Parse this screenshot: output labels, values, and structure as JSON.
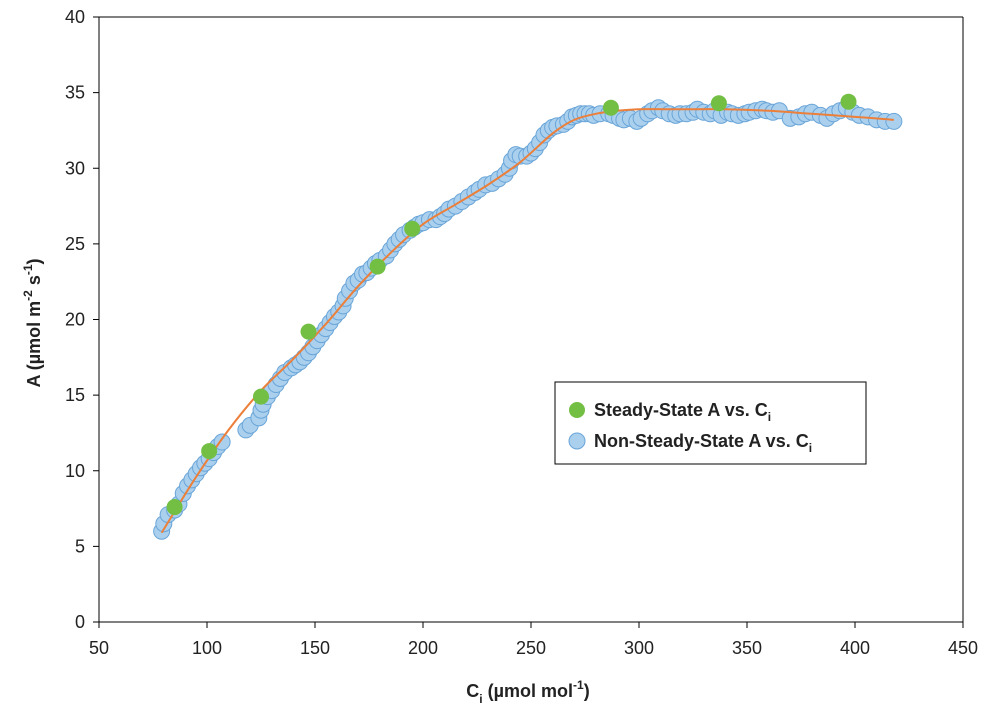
{
  "chart_data": {
    "type": "scatter",
    "xlabel": "C",
    "xlabel_sub": "i",
    "xlabel_unit": " (µmol mol",
    "xlabel_sup": "-1",
    "xlabel_close": ")",
    "ylabel": "A (µmol m",
    "ylabel_sup1": "-2",
    "ylabel_mid": " s",
    "ylabel_sup2": "-1",
    "ylabel_close": ")",
    "xlim": [
      50,
      450
    ],
    "ylim": [
      0,
      40
    ],
    "x_ticks": [
      "50",
      "100",
      "150",
      "200",
      "250",
      "300",
      "350",
      "400",
      "450"
    ],
    "y_ticks": [
      "0",
      "5",
      "10",
      "15",
      "20",
      "25",
      "30",
      "35",
      "40"
    ],
    "grid": false,
    "legend_position": "center-right",
    "series": [
      {
        "name": "Non-Steady-State A vs. C",
        "name_sub": "i",
        "color": "#aad0ee",
        "edge_color": "#6aa5d8",
        "marker": "circle",
        "x": [
          79,
          80,
          82,
          85,
          87,
          89,
          91,
          93,
          95,
          97,
          99,
          101,
          103,
          105,
          107,
          118,
          120,
          124,
          125,
          126,
          128,
          130,
          132,
          134,
          136,
          139,
          141,
          143,
          145,
          147,
          149,
          151,
          153,
          155,
          157,
          159,
          161,
          163,
          164,
          166,
          168,
          170,
          172,
          174,
          176,
          178,
          180,
          183,
          185,
          187,
          189,
          191,
          194,
          196,
          198,
          200,
          203,
          206,
          208,
          210,
          212,
          215,
          218,
          221,
          224,
          226,
          229,
          232,
          235,
          238,
          240,
          241,
          243,
          245,
          248,
          250,
          252,
          254,
          256,
          258,
          260,
          262,
          265,
          267,
          269,
          271,
          273,
          275,
          277,
          279,
          282,
          286,
          288,
          291,
          293,
          296,
          299,
          301,
          304,
          306,
          309,
          311,
          314,
          317,
          319,
          322,
          325,
          327,
          330,
          333,
          335,
          338,
          341,
          343,
          346,
          349,
          351,
          354,
          357,
          359,
          362,
          365,
          370,
          374,
          377,
          380,
          384,
          387,
          390,
          393,
          396,
          399,
          402,
          406,
          410,
          414,
          418
        ],
        "y": [
          6.0,
          6.5,
          7.1,
          7.4,
          7.8,
          8.5,
          9.0,
          9.4,
          9.8,
          10.2,
          10.5,
          10.8,
          11.2,
          11.6,
          11.9,
          12.7,
          13.0,
          13.5,
          14.0,
          14.4,
          14.9,
          15.3,
          15.7,
          16.1,
          16.5,
          16.8,
          17.0,
          17.2,
          17.5,
          17.8,
          18.2,
          18.6,
          19.0,
          19.4,
          19.8,
          20.2,
          20.5,
          20.9,
          21.4,
          21.9,
          22.4,
          22.6,
          23.0,
          23.1,
          23.4,
          23.7,
          23.9,
          24.2,
          24.6,
          25.0,
          25.3,
          25.6,
          25.9,
          26.1,
          26.3,
          26.4,
          26.6,
          26.6,
          26.8,
          27.0,
          27.3,
          27.5,
          27.8,
          28.1,
          28.4,
          28.6,
          28.9,
          29.0,
          29.3,
          29.6,
          30.0,
          30.5,
          30.9,
          30.8,
          30.8,
          31.0,
          31.3,
          31.7,
          32.2,
          32.5,
          32.7,
          32.8,
          32.9,
          33.1,
          33.4,
          33.5,
          33.6,
          33.6,
          33.6,
          33.5,
          33.6,
          33.6,
          33.5,
          33.3,
          33.2,
          33.3,
          33.1,
          33.3,
          33.6,
          33.8,
          34.0,
          33.8,
          33.6,
          33.5,
          33.6,
          33.6,
          33.7,
          33.9,
          33.7,
          33.6,
          33.8,
          33.5,
          33.7,
          33.6,
          33.5,
          33.6,
          33.7,
          33.8,
          33.9,
          33.8,
          33.7,
          33.8,
          33.3,
          33.4,
          33.6,
          33.7,
          33.5,
          33.3,
          33.6,
          33.8,
          34.0,
          33.7,
          33.5,
          33.4,
          33.2,
          33.1,
          33.1
        ]
      },
      {
        "name": "Steady-State A vs. C",
        "name_sub": "i",
        "color": "#72bf44",
        "marker": "circle",
        "x": [
          85,
          101,
          125,
          147,
          179,
          195,
          287,
          337,
          397
        ],
        "y": [
          7.6,
          11.3,
          14.9,
          19.2,
          23.5,
          26.0,
          34.0,
          34.3,
          34.4
        ]
      }
    ],
    "fit_line": {
      "color": "#ec7f3a",
      "x": [
        79,
        85,
        95,
        110,
        125,
        140,
        155,
        170,
        185,
        200,
        215,
        230,
        245,
        260,
        270,
        280,
        290,
        300,
        320,
        340,
        360,
        380,
        400,
        418
      ],
      "y": [
        5.9,
        7.3,
        9.6,
        12.7,
        15.3,
        17.4,
        19.7,
        22.2,
        24.4,
        26.3,
        27.6,
        28.9,
        30.4,
        32.3,
        33.2,
        33.6,
        33.8,
        33.9,
        33.9,
        33.9,
        33.8,
        33.6,
        33.4,
        33.2
      ]
    }
  }
}
